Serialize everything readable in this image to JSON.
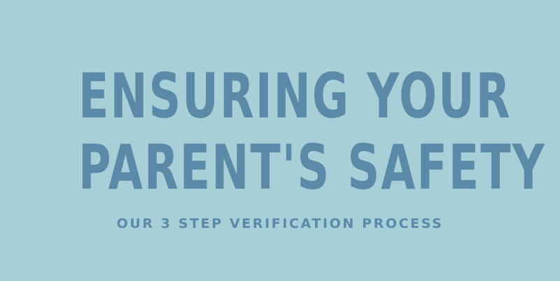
{
  "banner": {
    "headline_line_1": "ENSURING YOUR",
    "headline_line_2": "PARENT'S SAFETY",
    "subtitle": "OUR 3 STEP VERIFICATION PROCESS"
  },
  "colors": {
    "background": "#a8ced8",
    "text": "#5a8aa8"
  }
}
